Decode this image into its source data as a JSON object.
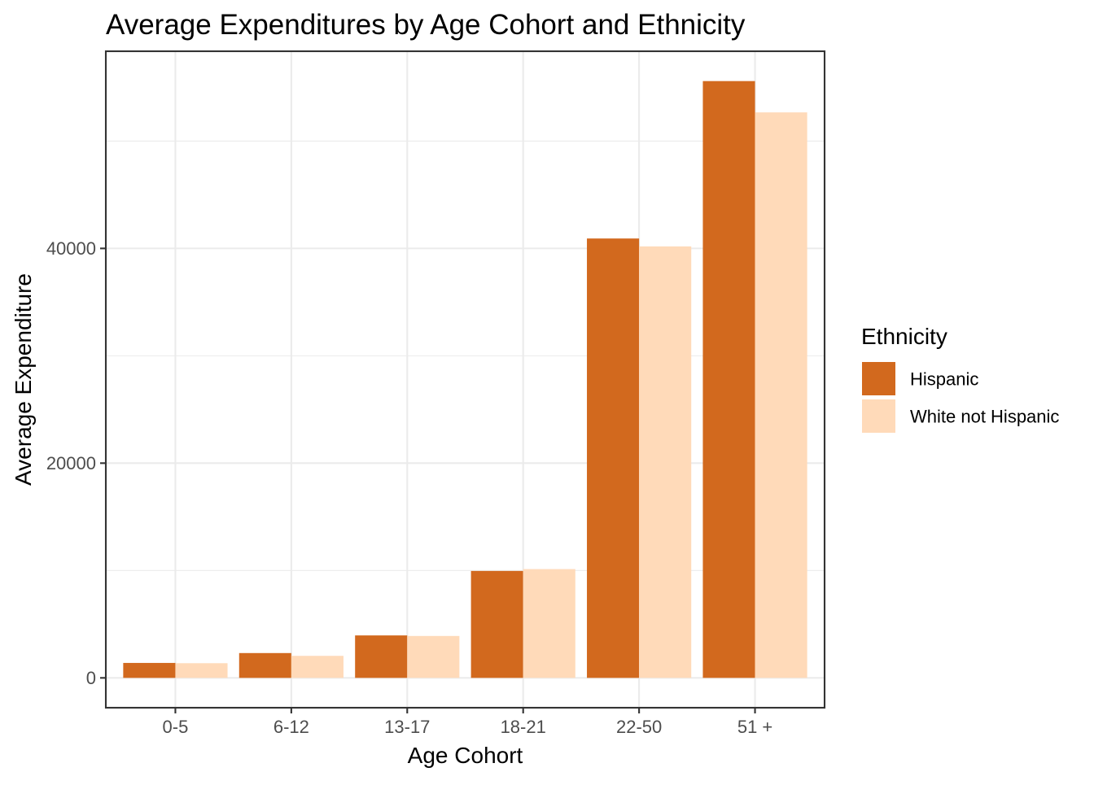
{
  "chart_data": {
    "type": "bar",
    "title": "Average Expenditures by Age Cohort and Ethnicity",
    "xlabel": "Age Cohort",
    "ylabel": "Average Expenditure",
    "categories": [
      "0-5",
      "6-12",
      "13-17",
      "18-21",
      "22-50",
      "51 +"
    ],
    "series": [
      {
        "name": "Hispanic",
        "color": "#D2691E",
        "values": [
          1393,
          2312,
          3955,
          9960,
          40924,
          55585
        ]
      },
      {
        "name": "White not Hispanic",
        "color": "#FFDAB9",
        "values": [
          1367,
          2052,
          3904,
          10133,
          40188,
          52670
        ]
      }
    ],
    "ylim": [
      -2779,
      58364
    ],
    "yticks": [
      0,
      20000,
      40000
    ],
    "yticks_labels": [
      "0",
      "20000",
      "40000"
    ],
    "minor_gridlines": [
      10000,
      30000,
      50000
    ],
    "grid": true,
    "legend": {
      "title": "Ethnicity",
      "placement": "right"
    }
  }
}
